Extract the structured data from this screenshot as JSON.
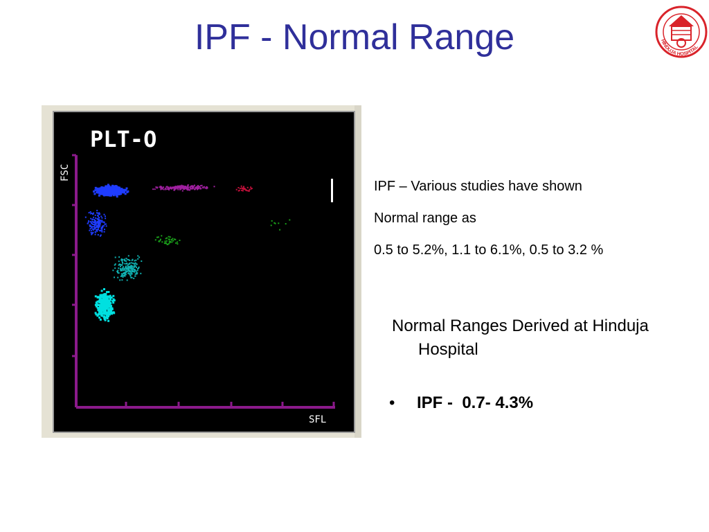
{
  "slide": {
    "title": "IPF - Normal Range"
  },
  "logo": {
    "icon": "hinduja-hospital-logo-icon",
    "text": "HINDUJA HOSPITAL",
    "color": "#d9232a"
  },
  "scatterplot": {
    "panel_title": "PLT-O",
    "y_axis_label": "FSC",
    "x_axis_label": "SFL",
    "axis_color": "#8b1a8b"
  },
  "studies": {
    "line1": "IPF – Various studies have shown",
    "line2": "Normal range as",
    "line3": "0.5 to 5.2%, 1.1 to 6.1%, 0.5 to 3.2 %"
  },
  "hinduja": {
    "heading_line1": "Normal Ranges Derived at Hinduja",
    "heading_line2": "Hospital",
    "bullet_symbol": "•",
    "bullet_text": "IPF -  0.7- 4.3%"
  },
  "colors": {
    "title": "#2f2f9a",
    "blue_cluster": "#1f3cff",
    "magenta_cluster": "#a020a0",
    "cyan_cluster": "#00e0e0",
    "green_points": "#1aa01a"
  }
}
